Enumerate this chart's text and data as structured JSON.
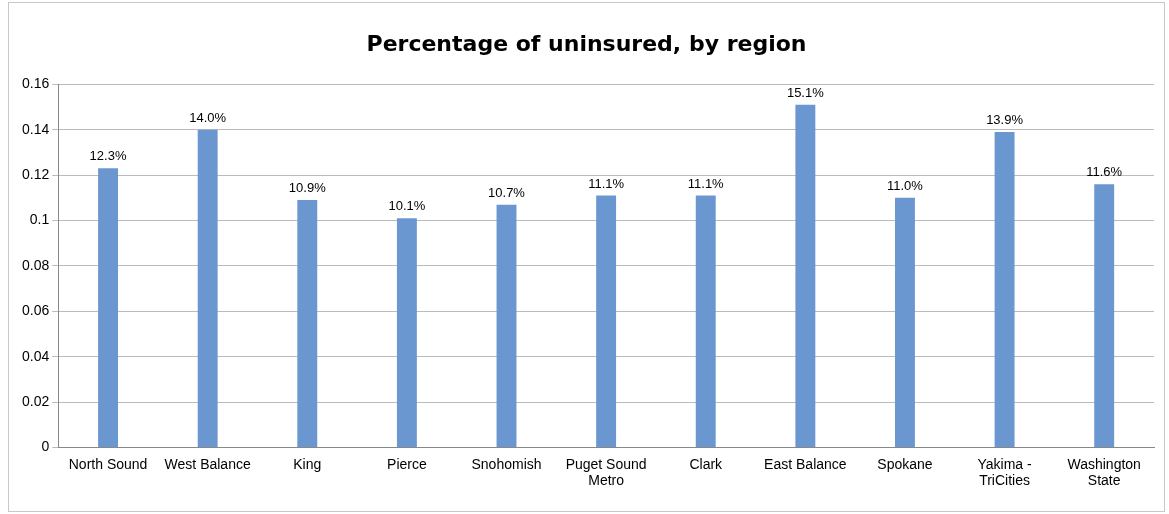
{
  "chart_data": {
    "type": "bar",
    "title": "Percentage of uninsured, by region",
    "categories": [
      "North Sound",
      "West Balance",
      "King",
      "Pierce",
      "Snohomish",
      "Puget Sound Metro",
      "Clark",
      "East Balance",
      "Spokane",
      "Yakima - TriCities",
      "Washington State"
    ],
    "values": [
      0.123,
      0.14,
      0.109,
      0.101,
      0.107,
      0.111,
      0.111,
      0.151,
      0.11,
      0.139,
      0.116
    ],
    "value_labels": [
      "12.3%",
      "14.0%",
      "10.9%",
      "10.1%",
      "10.7%",
      "11.1%",
      "11.1%",
      "15.1%",
      "11.0%",
      "13.9%",
      "11.6%"
    ],
    "color": "#6a97cf",
    "ylim": [
      0,
      0.16
    ],
    "yticks": [
      0,
      0.02,
      0.04,
      0.06,
      0.08,
      0.1,
      0.12,
      0.14,
      0.16
    ],
    "grid": "y",
    "legend": false
  }
}
